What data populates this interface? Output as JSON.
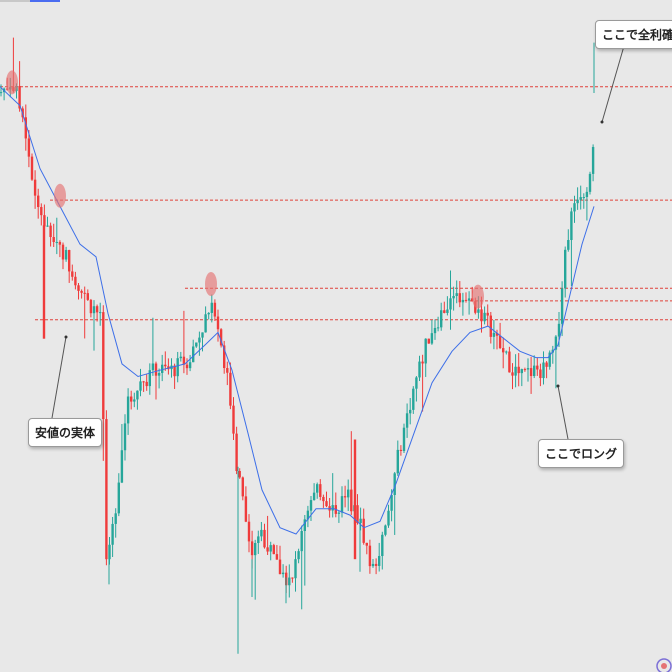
{
  "annotations": {
    "top_right": "ここで全利確",
    "left": "安値の実体",
    "right": "ここでロング"
  },
  "colors": {
    "background": "#e8e8e8",
    "up_candle": "#26a69a",
    "down_candle": "#ef3b3b",
    "moving_average": "#3d6fe8",
    "level_line": "#e0413a",
    "marker": "#e57373"
  },
  "chart_data": {
    "type": "candlestick",
    "title": "",
    "xlabel": "",
    "ylabel": "",
    "ylim": [
      0,
      100
    ],
    "grid": false,
    "legend": "none",
    "price_path": [
      [
        0,
        90
      ],
      [
        12,
        92
      ],
      [
        24,
        86
      ],
      [
        36,
        73
      ],
      [
        48,
        68
      ],
      [
        60,
        66
      ],
      [
        72,
        62
      ],
      [
        86,
        57
      ],
      [
        100,
        55
      ],
      [
        108,
        15
      ],
      [
        116,
        25
      ],
      [
        126,
        40
      ],
      [
        140,
        44
      ],
      [
        155,
        46
      ],
      [
        172,
        46
      ],
      [
        190,
        48
      ],
      [
        205,
        54
      ],
      [
        215,
        56
      ],
      [
        228,
        44
      ],
      [
        240,
        28
      ],
      [
        252,
        16
      ],
      [
        262,
        20
      ],
      [
        276,
        15
      ],
      [
        292,
        12
      ],
      [
        305,
        24
      ],
      [
        320,
        27
      ],
      [
        334,
        24
      ],
      [
        348,
        26
      ],
      [
        362,
        21
      ],
      [
        372,
        14
      ],
      [
        385,
        20
      ],
      [
        400,
        34
      ],
      [
        415,
        44
      ],
      [
        430,
        52
      ],
      [
        445,
        56
      ],
      [
        460,
        58
      ],
      [
        477,
        56
      ],
      [
        490,
        53
      ],
      [
        505,
        48
      ],
      [
        520,
        45
      ],
      [
        534,
        46
      ],
      [
        546,
        46
      ],
      [
        556,
        50
      ],
      [
        566,
        66
      ],
      [
        576,
        74
      ],
      [
        586,
        75
      ],
      [
        592,
        80
      ],
      [
        596,
        90
      ]
    ],
    "moving_average_path": [
      [
        0,
        91
      ],
      [
        20,
        88
      ],
      [
        40,
        78
      ],
      [
        60,
        72
      ],
      [
        80,
        66
      ],
      [
        96,
        64
      ],
      [
        108,
        55
      ],
      [
        122,
        47
      ],
      [
        138,
        45
      ],
      [
        160,
        46
      ],
      [
        185,
        47
      ],
      [
        205,
        50
      ],
      [
        218,
        52
      ],
      [
        232,
        46
      ],
      [
        248,
        36
      ],
      [
        262,
        27
      ],
      [
        280,
        21
      ],
      [
        296,
        20
      ],
      [
        316,
        24
      ],
      [
        334,
        24
      ],
      [
        350,
        23
      ],
      [
        364,
        21
      ],
      [
        380,
        22
      ],
      [
        396,
        28
      ],
      [
        414,
        36
      ],
      [
        432,
        44
      ],
      [
        452,
        49
      ],
      [
        470,
        52
      ],
      [
        488,
        53
      ],
      [
        504,
        51
      ],
      [
        520,
        49
      ],
      [
        536,
        48
      ],
      [
        548,
        48
      ],
      [
        558,
        50
      ],
      [
        570,
        58
      ],
      [
        582,
        66
      ],
      [
        594,
        72
      ]
    ],
    "horizontal_levels": [
      {
        "y": 91,
        "from_x": 0
      },
      {
        "y": 73,
        "from_x": 50
      },
      {
        "y": 59,
        "from_x": 185
      },
      {
        "y": 57,
        "from_x": 470
      },
      {
        "y": 54,
        "from_x": 35
      }
    ],
    "markers": [
      {
        "x": 12,
        "y": 92
      },
      {
        "x": 60,
        "y": 74
      },
      {
        "x": 211,
        "y": 60
      },
      {
        "x": 478,
        "y": 58
      }
    ]
  }
}
